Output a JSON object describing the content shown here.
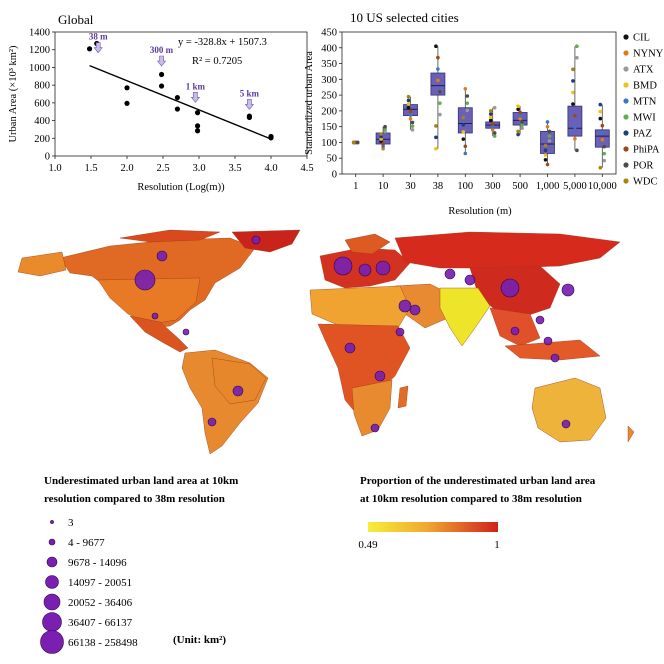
{
  "chart_data": [
    {
      "type": "scatter",
      "title": "Global",
      "xlabel": "Resolution (Log(m))",
      "ylabel": "Urban Area (×10³ km²)",
      "xlim": [
        1.0,
        4.5
      ],
      "ylim": [
        0,
        1400
      ],
      "xticks": [
        "1.0",
        "1.5",
        "2.0",
        "2.5",
        "3.0",
        "3.5",
        "4.0",
        "4.5"
      ],
      "yticks": [
        "0",
        "200",
        "400",
        "600",
        "800",
        "1000",
        "1200",
        "1400"
      ],
      "equation": "y = -328.8x + 1507.3",
      "r2": "R² = 0.7205",
      "fit": {
        "slope": -328.8,
        "intercept": 1507.3,
        "x_range": [
          1.48,
          4.0
        ]
      },
      "points": [
        {
          "x": 1.48,
          "y": 1210
        },
        {
          "x": 1.58,
          "y": 1270
        },
        {
          "x": 2.0,
          "y": 770
        },
        {
          "x": 2.0,
          "y": 595
        },
        {
          "x": 2.48,
          "y": 920
        },
        {
          "x": 2.48,
          "y": 790
        },
        {
          "x": 2.7,
          "y": 660
        },
        {
          "x": 2.7,
          "y": 530
        },
        {
          "x": 2.95,
          "y": 650
        },
        {
          "x": 2.98,
          "y": 490
        },
        {
          "x": 2.98,
          "y": 340
        },
        {
          "x": 2.98,
          "y": 285
        },
        {
          "x": 3.7,
          "y": 450
        },
        {
          "x": 3.7,
          "y": 435
        },
        {
          "x": 4.0,
          "y": 220
        },
        {
          "x": 4.0,
          "y": 205
        }
      ],
      "annotations": [
        {
          "text": "38 m",
          "x": 1.6,
          "y": 1200
        },
        {
          "text": "300 m",
          "x": 2.48,
          "y": 1050
        },
        {
          "text": "1 km",
          "x": 2.95,
          "y": 640
        },
        {
          "text": "5 km",
          "x": 3.7,
          "y": 560
        }
      ]
    },
    {
      "type": "box",
      "title": "10 US selected cities",
      "xlabel": "Resolution (m)",
      "ylabel": "Standardized urban Area",
      "ylim": [
        0,
        450
      ],
      "yticks": [
        "0",
        "50",
        "100",
        "150",
        "200",
        "250",
        "300",
        "350",
        "400",
        "450"
      ],
      "categories": [
        "1",
        "10",
        "30",
        "38",
        "100",
        "300",
        "500",
        "1,000",
        "5,000",
        "10,000"
      ],
      "boxes": [
        {
          "q1": 100,
          "median": 100,
          "q3": 100,
          "min": 100,
          "max": 100
        },
        {
          "q1": 95,
          "median": 110,
          "q3": 130,
          "min": 80,
          "max": 150
        },
        {
          "q1": 185,
          "median": 205,
          "q3": 220,
          "min": 140,
          "max": 245
        },
        {
          "q1": 250,
          "median": 280,
          "q3": 320,
          "min": 80,
          "max": 405
        },
        {
          "q1": 130,
          "median": 160,
          "q3": 210,
          "min": 65,
          "max": 270
        },
        {
          "q1": 145,
          "median": 155,
          "q3": 165,
          "min": 120,
          "max": 210
        },
        {
          "q1": 155,
          "median": 170,
          "q3": 195,
          "min": 125,
          "max": 215
        },
        {
          "q1": 65,
          "median": 95,
          "q3": 135,
          "min": 30,
          "max": 165
        },
        {
          "q1": 120,
          "median": 145,
          "q3": 215,
          "min": 75,
          "max": 405
        },
        {
          "q1": 85,
          "median": 120,
          "q3": 140,
          "min": 20,
          "max": 220
        }
      ],
      "legend": [
        {
          "name": "CIL",
          "color": "#111111"
        },
        {
          "name": "NYNY",
          "color": "#e07b1f"
        },
        {
          "name": "ATX",
          "color": "#9a9a9a"
        },
        {
          "name": "BMD",
          "color": "#f2c018"
        },
        {
          "name": "MTN",
          "color": "#3b78c3"
        },
        {
          "name": "MWI",
          "color": "#5fb04b"
        },
        {
          "name": "PAZ",
          "color": "#1d3f7d"
        },
        {
          "name": "PhiPA",
          "color": "#9a4a17"
        },
        {
          "name": "POR",
          "color": "#4c4c4c"
        },
        {
          "name": "WDC",
          "color": "#a88412"
        }
      ]
    },
    {
      "type": "map",
      "left_caption_1": "Underestimated urban land area at 10km",
      "left_caption_2": "resolution compared to 38m resolution",
      "right_caption_1": "Proportion of the underestimated urban land area",
      "right_caption_2": "at 10km resolution compared to 38m resolution",
      "bubble_legend": [
        "3",
        "4 - 9677",
        "9678 - 14096",
        "14097 - 20051",
        "20052 - 36406",
        "36407 - 66137",
        "66138 - 258498"
      ],
      "unit": "(Unit: km²)",
      "colorbar_min": "0.49",
      "colorbar_max": "1"
    }
  ]
}
